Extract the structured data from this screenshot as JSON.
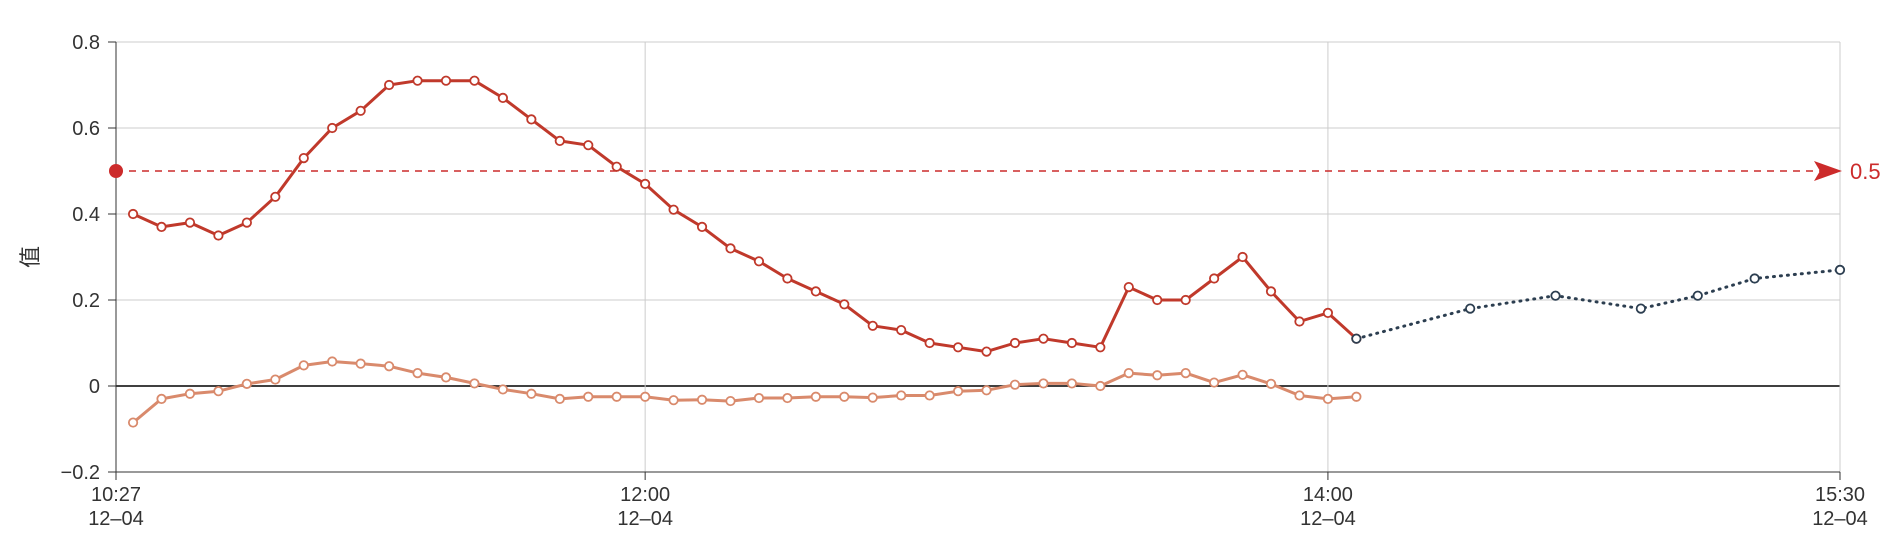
{
  "chart_data": {
    "type": "line",
    "ylabel": "值",
    "ylim": [
      -0.2,
      0.8
    ],
    "yticks": [
      {
        "value": 0.8,
        "label": "0.8"
      },
      {
        "value": 0.6,
        "label": "0.6"
      },
      {
        "value": 0.4,
        "label": "0.4"
      },
      {
        "value": 0.2,
        "label": "0.2"
      },
      {
        "value": 0,
        "label": "0"
      },
      {
        "value": -0.2,
        "label": "−0.2"
      }
    ],
    "xlim": [
      "10:27",
      "15:30"
    ],
    "xticks": [
      {
        "time": "10:27",
        "label": "10:27",
        "sublabel": "12–04"
      },
      {
        "time": "12:00",
        "label": "12:00",
        "sublabel": "12–04"
      },
      {
        "time": "14:00",
        "label": "14:00",
        "sublabel": "12–04"
      },
      {
        "time": "15:30",
        "label": "15:30",
        "sublabel": "12–04"
      }
    ],
    "grid": true,
    "threshold": {
      "value": 0.5,
      "label": "0.5",
      "color": "#cc2b2b"
    },
    "series": [
      {
        "color": "#c0392b",
        "style": "solid",
        "points": [
          [
            "10:30",
            0.4
          ],
          [
            "10:35",
            0.37
          ],
          [
            "10:40",
            0.38
          ],
          [
            "10:45",
            0.35
          ],
          [
            "10:50",
            0.38
          ],
          [
            "10:55",
            0.44
          ],
          [
            "11:00",
            0.53
          ],
          [
            "11:05",
            0.6
          ],
          [
            "11:10",
            0.64
          ],
          [
            "11:15",
            0.7
          ],
          [
            "11:20",
            0.71
          ],
          [
            "11:25",
            0.71
          ],
          [
            "11:30",
            0.71
          ],
          [
            "11:35",
            0.67
          ],
          [
            "11:40",
            0.62
          ],
          [
            "11:45",
            0.57
          ],
          [
            "11:50",
            0.56
          ],
          [
            "11:55",
            0.51
          ],
          [
            "12:00",
            0.47
          ],
          [
            "12:05",
            0.41
          ],
          [
            "12:10",
            0.37
          ],
          [
            "12:15",
            0.32
          ],
          [
            "12:20",
            0.29
          ],
          [
            "12:25",
            0.25
          ],
          [
            "12:30",
            0.22
          ],
          [
            "12:35",
            0.19
          ],
          [
            "12:40",
            0.14
          ],
          [
            "12:45",
            0.13
          ],
          [
            "12:50",
            0.1
          ],
          [
            "12:55",
            0.09
          ],
          [
            "13:00",
            0.08
          ],
          [
            "13:05",
            0.1
          ],
          [
            "13:10",
            0.11
          ],
          [
            "13:15",
            0.1
          ],
          [
            "13:20",
            0.09
          ],
          [
            "13:25",
            0.23
          ],
          [
            "13:30",
            0.2
          ],
          [
            "13:35",
            0.2
          ],
          [
            "13:40",
            0.25
          ],
          [
            "13:45",
            0.3
          ],
          [
            "13:50",
            0.22
          ],
          [
            "13:55",
            0.15
          ],
          [
            "14:00",
            0.17
          ],
          [
            "14:05",
            0.11
          ]
        ]
      },
      {
        "color": "#d98a6c",
        "style": "solid",
        "points": [
          [
            "10:30",
            -0.085
          ],
          [
            "10:35",
            -0.03
          ],
          [
            "10:40",
            -0.018
          ],
          [
            "10:45",
            -0.012
          ],
          [
            "10:50",
            0.005
          ],
          [
            "10:55",
            0.015
          ],
          [
            "11:00",
            0.048
          ],
          [
            "11:05",
            0.057
          ],
          [
            "11:10",
            0.052
          ],
          [
            "11:15",
            0.046
          ],
          [
            "11:20",
            0.03
          ],
          [
            "11:25",
            0.02
          ],
          [
            "11:30",
            0.006
          ],
          [
            "11:35",
            -0.008
          ],
          [
            "11:40",
            -0.018
          ],
          [
            "11:45",
            -0.03
          ],
          [
            "11:50",
            -0.025
          ],
          [
            "11:55",
            -0.025
          ],
          [
            "12:00",
            -0.025
          ],
          [
            "12:05",
            -0.033
          ],
          [
            "12:10",
            -0.032
          ],
          [
            "12:15",
            -0.035
          ],
          [
            "12:20",
            -0.028
          ],
          [
            "12:25",
            -0.028
          ],
          [
            "12:30",
            -0.025
          ],
          [
            "12:35",
            -0.025
          ],
          [
            "12:40",
            -0.027
          ],
          [
            "12:45",
            -0.022
          ],
          [
            "12:50",
            -0.022
          ],
          [
            "12:55",
            -0.012
          ],
          [
            "13:00",
            -0.01
          ],
          [
            "13:05",
            0.003
          ],
          [
            "13:10",
            0.006
          ],
          [
            "13:15",
            0.006
          ],
          [
            "13:20",
            0.0
          ],
          [
            "13:25",
            0.03
          ],
          [
            "13:30",
            0.025
          ],
          [
            "13:35",
            0.03
          ],
          [
            "13:40",
            0.008
          ],
          [
            "13:45",
            0.026
          ],
          [
            "13:50",
            0.005
          ],
          [
            "13:55",
            -0.022
          ],
          [
            "14:00",
            -0.03
          ],
          [
            "14:05",
            -0.025
          ]
        ]
      },
      {
        "color": "#2c3e50",
        "style": "dotted",
        "points": [
          [
            "14:05",
            0.11
          ],
          [
            "14:25",
            0.18
          ],
          [
            "14:40",
            0.21
          ],
          [
            "14:55",
            0.18
          ],
          [
            "15:05",
            0.21
          ],
          [
            "15:15",
            0.25
          ],
          [
            "15:30",
            0.27
          ]
        ]
      }
    ]
  }
}
